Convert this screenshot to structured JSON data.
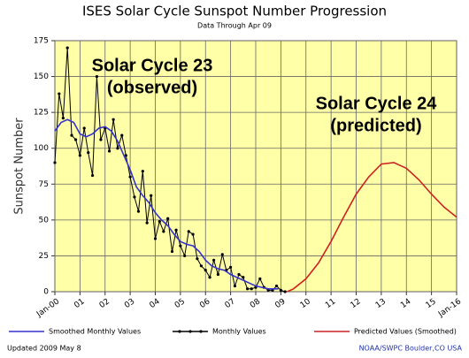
{
  "chart_data": {
    "type": "line",
    "title": "ISES Solar Cycle Sunspot Number Progression",
    "subtitle": "Data Through Apr 09",
    "y_label": "Sunspot Number",
    "annotations": [
      {
        "lines": [
          "Solar Cycle 23",
          "(observed)"
        ]
      },
      {
        "lines": [
          "Solar Cycle 24",
          "(predicted)"
        ]
      }
    ],
    "footer_left": "Updated 2009 May  8",
    "footer_right": "NOAA/SWPC Boulder,CO USA",
    "xlim": [
      2000,
      2016
    ],
    "xticks": [
      {
        "value": 2000,
        "label": "Jan-00"
      },
      {
        "value": 2001,
        "label": "01"
      },
      {
        "value": 2002,
        "label": "02"
      },
      {
        "value": 2003,
        "label": "03"
      },
      {
        "value": 2004,
        "label": "04"
      },
      {
        "value": 2005,
        "label": "05"
      },
      {
        "value": 2006,
        "label": "06"
      },
      {
        "value": 2007,
        "label": "07"
      },
      {
        "value": 2008,
        "label": "08"
      },
      {
        "value": 2009,
        "label": "09"
      },
      {
        "value": 2010,
        "label": "10"
      },
      {
        "value": 2011,
        "label": "11"
      },
      {
        "value": 2012,
        "label": "12"
      },
      {
        "value": 2013,
        "label": "13"
      },
      {
        "value": 2014,
        "label": "14"
      },
      {
        "value": 2015,
        "label": "15"
      },
      {
        "value": 2016,
        "label": "Jan-16"
      }
    ],
    "ylim": [
      0,
      175
    ],
    "yticks": [
      0,
      25,
      50,
      75,
      100,
      125,
      150,
      175
    ],
    "grid": true,
    "series": [
      {
        "name": "Smoothed Monthly Values",
        "color": "#3333cc",
        "markers": false,
        "x": [
          2000.0,
          2000.25,
          2000.5,
          2000.75,
          2001.0,
          2001.25,
          2001.5,
          2001.75,
          2002.0,
          2002.25,
          2002.5,
          2002.75,
          2003.0,
          2003.25,
          2003.5,
          2003.75,
          2004.0,
          2004.25,
          2004.5,
          2004.75,
          2005.0,
          2005.25,
          2005.5,
          2005.75,
          2006.0,
          2006.25,
          2006.5,
          2006.75,
          2007.0,
          2007.25,
          2007.5,
          2007.75,
          2008.0,
          2008.25,
          2008.5,
          2008.75,
          2008.9
        ],
        "values": [
          112,
          118,
          120,
          118,
          110,
          108,
          110,
          114,
          115,
          112,
          105,
          95,
          85,
          73,
          67,
          62,
          55,
          50,
          46,
          40,
          35,
          33,
          32,
          28,
          22,
          18,
          16,
          15,
          12,
          10,
          8,
          6,
          4,
          3,
          2,
          2,
          2
        ]
      },
      {
        "name": "Monthly Values",
        "color": "#000000",
        "markers": true,
        "x": [
          2000.0,
          2000.17,
          2000.33,
          2000.5,
          2000.67,
          2000.83,
          2001.0,
          2001.17,
          2001.33,
          2001.5,
          2001.67,
          2001.83,
          2002.0,
          2002.17,
          2002.33,
          2002.5,
          2002.67,
          2002.83,
          2003.0,
          2003.17,
          2003.33,
          2003.5,
          2003.67,
          2003.83,
          2004.0,
          2004.17,
          2004.33,
          2004.5,
          2004.67,
          2004.83,
          2005.0,
          2005.17,
          2005.33,
          2005.5,
          2005.67,
          2005.83,
          2006.0,
          2006.17,
          2006.33,
          2006.5,
          2006.67,
          2006.83,
          2007.0,
          2007.17,
          2007.33,
          2007.5,
          2007.67,
          2007.83,
          2008.0,
          2008.17,
          2008.33,
          2008.5,
          2008.67,
          2008.83,
          2009.0,
          2009.17
        ],
        "values": [
          90,
          138,
          121,
          170,
          109,
          106,
          95,
          114,
          97,
          81,
          150,
          106,
          114,
          98,
          120,
          100,
          109,
          95,
          80,
          66,
          56,
          84,
          48,
          67,
          37,
          49,
          42,
          51,
          28,
          43,
          32,
          25,
          42,
          40,
          23,
          18,
          15,
          10,
          22,
          12,
          26,
          15,
          17,
          4,
          12,
          10,
          2,
          2,
          3,
          9,
          3,
          1,
          1,
          4,
          1,
          0
        ]
      },
      {
        "name": "Predicted Values (Smoothed)",
        "color": "#cc2222",
        "markers": false,
        "x": [
          2009.25,
          2009.5,
          2010,
          2010.5,
          2011,
          2011.5,
          2012,
          2012.5,
          2013,
          2013.5,
          2014,
          2014.5,
          2015,
          2015.5,
          2016
        ],
        "values": [
          0,
          2,
          9,
          20,
          35,
          52,
          68,
          80,
          89,
          90,
          86,
          78,
          68,
          59,
          52
        ]
      }
    ]
  }
}
